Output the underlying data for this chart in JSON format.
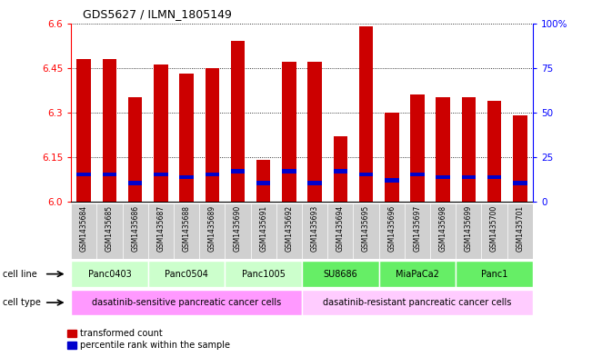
{
  "title": "GDS5627 / ILMN_1805149",
  "samples": [
    "GSM1435684",
    "GSM1435685",
    "GSM1435686",
    "GSM1435687",
    "GSM1435688",
    "GSM1435689",
    "GSM1435690",
    "GSM1435691",
    "GSM1435692",
    "GSM1435693",
    "GSM1435694",
    "GSM1435695",
    "GSM1435696",
    "GSM1435697",
    "GSM1435698",
    "GSM1435699",
    "GSM1435700",
    "GSM1435701"
  ],
  "red_values": [
    6.48,
    6.48,
    6.35,
    6.46,
    6.43,
    6.45,
    6.54,
    6.14,
    6.47,
    6.47,
    6.22,
    6.59,
    6.3,
    6.36,
    6.35,
    6.35,
    6.34,
    6.29
  ],
  "blue_bottoms": [
    6.085,
    6.085,
    6.055,
    6.085,
    6.075,
    6.085,
    6.095,
    6.055,
    6.095,
    6.055,
    6.095,
    6.085,
    6.065,
    6.085,
    6.075,
    6.075,
    6.075,
    6.055
  ],
  "blue_heights": [
    0.014,
    0.014,
    0.014,
    0.014,
    0.014,
    0.014,
    0.014,
    0.014,
    0.014,
    0.014,
    0.014,
    0.014,
    0.014,
    0.014,
    0.014,
    0.014,
    0.014,
    0.014
  ],
  "ylim_left": [
    6.0,
    6.6
  ],
  "ylim_right": [
    0,
    100
  ],
  "yticks_left": [
    6.0,
    6.15,
    6.3,
    6.45,
    6.6
  ],
  "yticks_right": [
    0,
    25,
    50,
    75,
    100
  ],
  "ytick_labels_right": [
    "0",
    "25",
    "50",
    "75",
    "100%"
  ],
  "cell_lines": [
    {
      "label": "Panc0403",
      "start": 0,
      "end": 3,
      "color": "#ccffcc"
    },
    {
      "label": "Panc0504",
      "start": 3,
      "end": 6,
      "color": "#ccffcc"
    },
    {
      "label": "Panc1005",
      "start": 6,
      "end": 9,
      "color": "#ccffcc"
    },
    {
      "label": "SU8686",
      "start": 9,
      "end": 12,
      "color": "#66ee66"
    },
    {
      "label": "MiaPaCa2",
      "start": 12,
      "end": 15,
      "color": "#66ee66"
    },
    {
      "label": "Panc1",
      "start": 15,
      "end": 18,
      "color": "#66ee66"
    }
  ],
  "cell_types": [
    {
      "label": "dasatinib-sensitive pancreatic cancer cells",
      "start": 0,
      "end": 9,
      "color": "#ff99ff"
    },
    {
      "label": "dasatinib-resistant pancreatic cancer cells",
      "start": 9,
      "end": 18,
      "color": "#ffccff"
    }
  ],
  "bar_width": 0.55,
  "red_color": "#cc0000",
  "blue_color": "#0000cc",
  "bg_color": "#ffffff"
}
